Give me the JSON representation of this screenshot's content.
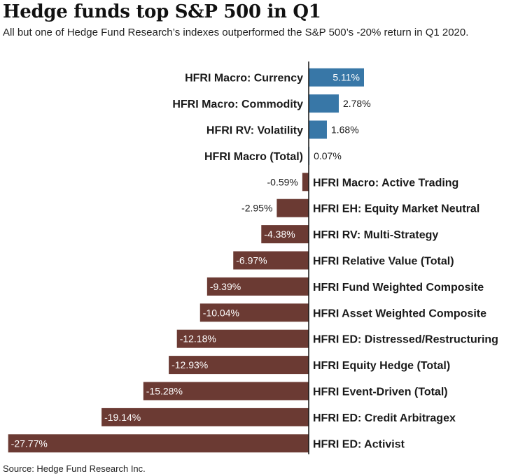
{
  "title": "Hedge funds top S&P 500 in Q1",
  "subtitle": "All but one of Hedge Fund Research’s indexes outperformed the S&P 500’s -20% return in Q1 2020.",
  "source": "Source: Hedge Fund Research Inc.",
  "chart_data": {
    "type": "bar",
    "orientation": "horizontal",
    "categories": [
      "HFRI Macro: Currency",
      "HFRI Macro: Commodity",
      "HFRI RV: Volatility",
      "HFRI Macro (Total)",
      "HFRI Macro: Active Trading",
      "HFRI EH: Equity Market Neutral",
      "HFRI RV: Multi-Strategy",
      "HFRI Relative Value (Total)",
      "HFRI Fund Weighted Composite",
      "HFRI Asset Weighted Composite",
      "HFRI ED: Distressed/Restructuring",
      "HFRI Equity Hedge (Total)",
      "HFRI Event-Driven (Total)",
      "HFRI ED: Credit Arbitragex",
      "HFRI ED: Activist"
    ],
    "values": [
      5.11,
      2.78,
      1.68,
      0.07,
      -0.59,
      -2.95,
      -4.38,
      -6.97,
      -9.39,
      -10.04,
      -12.18,
      -12.93,
      -15.28,
      -19.14,
      -27.77
    ],
    "value_labels": [
      "5.11%",
      "2.78%",
      "1.68%",
      "0.07%",
      "-0.59%",
      "-2.95%",
      "-4.38%",
      "-6.97%",
      "-9.39%",
      "-10.04%",
      "-12.18%",
      "-12.93%",
      "-15.28%",
      "-19.14%",
      "-27.77%"
    ],
    "xlim": [
      -27.77,
      5.11
    ],
    "grid": false,
    "legend": "none",
    "colors": {
      "positive": "#3877a7",
      "negative": "#6b3a33",
      "axis": "#111111"
    }
  }
}
